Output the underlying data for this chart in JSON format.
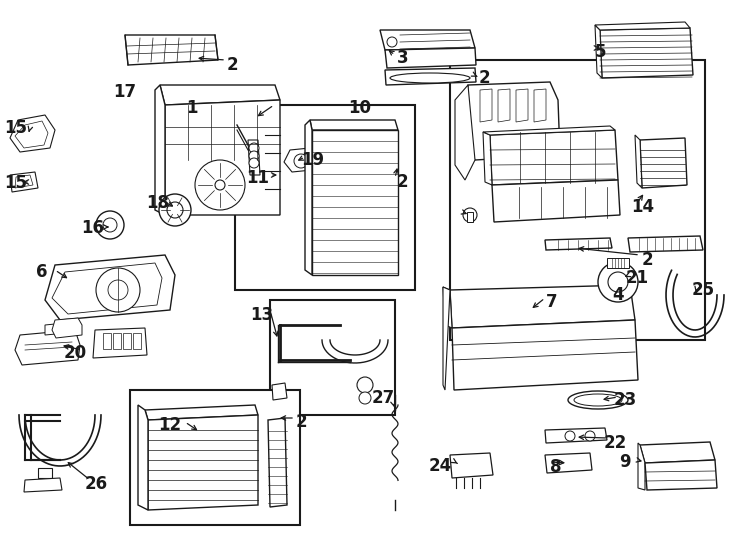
{
  "bg_color": "#ffffff",
  "fig_width": 7.34,
  "fig_height": 5.4,
  "dpi": 100,
  "line_color": "#1a1a1a",
  "font_size": 11,
  "font_weight": "bold"
}
